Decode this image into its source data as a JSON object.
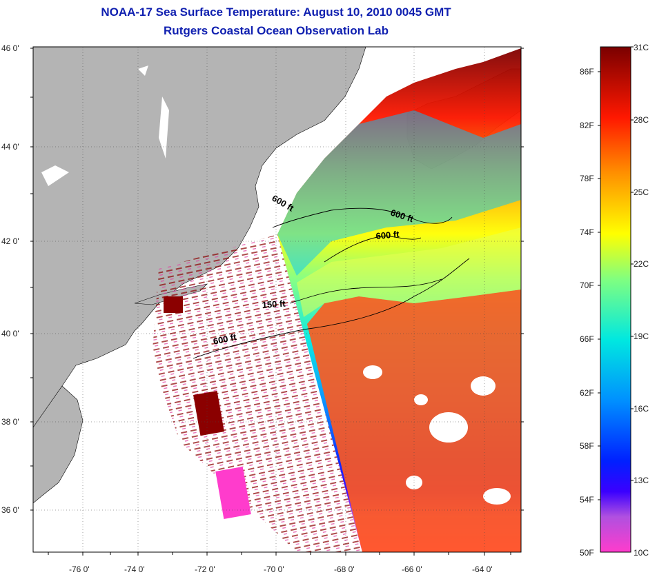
{
  "header": {
    "title": "NOAA-17 Sea Surface Temperature:  August 10, 2010 0045 GMT",
    "subtitle": "Rutgers Coastal Ocean Observation Lab"
  },
  "map": {
    "lat_labels": [
      "46 0'",
      "44 0'",
      "42 0'",
      "40 0'",
      "38 0'",
      "36 0'"
    ],
    "lon_labels": [
      "-76 0'",
      "-74 0'",
      "-72 0'",
      "-70 0'",
      "-68 0'",
      "-66 0'",
      "-64 0'"
    ],
    "contour_labels": [
      "600 ft",
      "600 ft",
      "600 ft",
      "150 ft",
      "600 ft"
    ],
    "colors": {
      "land": "#b4b4b4",
      "ocean_nodata": "#ffffff",
      "coast": "#000000"
    }
  },
  "colorbar": {
    "celsius_labels": [
      "31C",
      "28C",
      "25C",
      "22C",
      "19C",
      "16C",
      "13C",
      "10C"
    ],
    "fahrenheit_labels": [
      "86F",
      "82F",
      "78F",
      "74F",
      "70F",
      "66F",
      "62F",
      "58F",
      "54F",
      "50F"
    ]
  }
}
